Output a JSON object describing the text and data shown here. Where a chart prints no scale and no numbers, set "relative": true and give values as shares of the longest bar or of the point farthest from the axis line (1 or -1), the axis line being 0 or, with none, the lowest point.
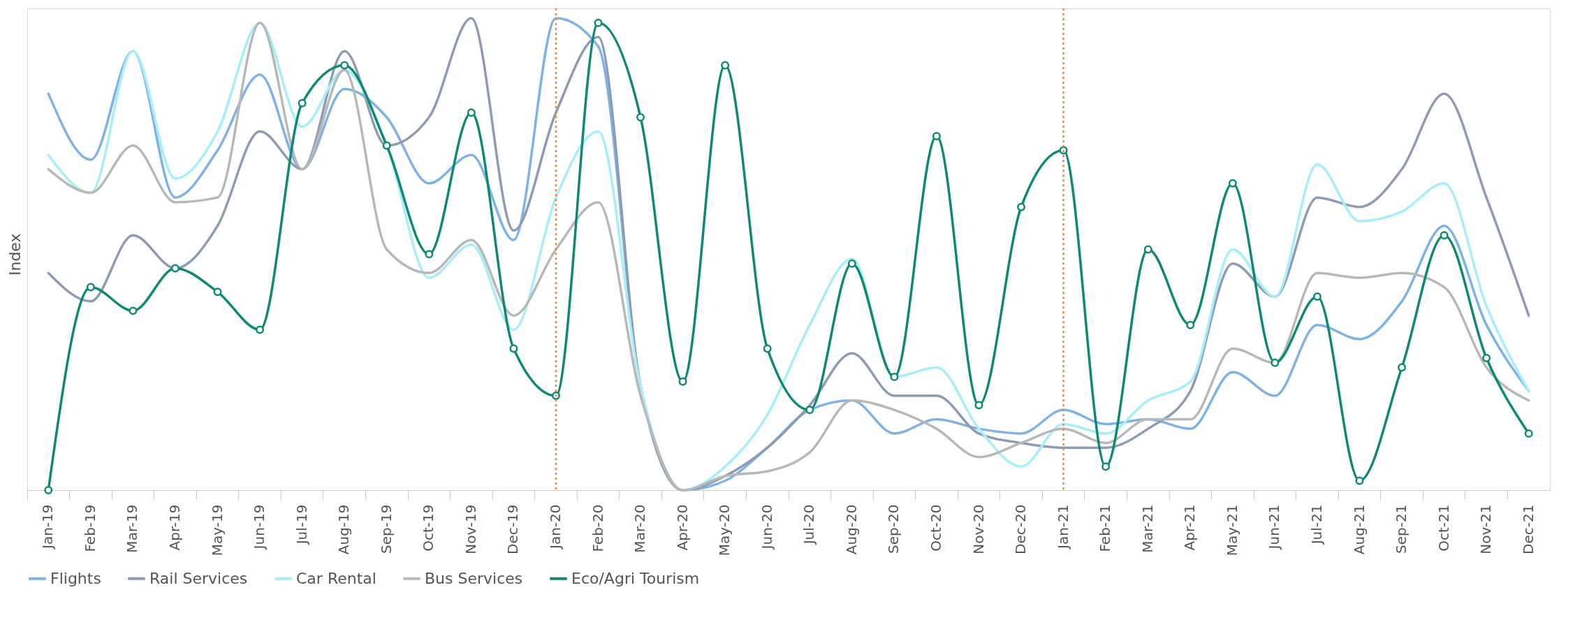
{
  "chart_data": {
    "type": "line",
    "relative": true,
    "ylabel": "Index",
    "legend": "bottom",
    "grid": false,
    "categories": [
      "Jan-19",
      "Feb-19",
      "Mar-19",
      "Apr-19",
      "May-19",
      "Jun-19",
      "Jul-19",
      "Aug-19",
      "Sep-19",
      "Oct-19",
      "Nov-19",
      "Dec-19",
      "Jan-20",
      "Feb-20",
      "Mar-20",
      "Apr-20",
      "May-20",
      "Jun-20",
      "Jul-20",
      "Aug-20",
      "Sep-20",
      "Oct-20",
      "Nov-20",
      "Dec-20",
      "Jan-21",
      "Feb-21",
      "Mar-21",
      "Apr-21",
      "May-21",
      "Jun-21",
      "Jul-21",
      "Aug-21",
      "Sep-21",
      "Oct-21",
      "Nov-21",
      "Dec-21"
    ],
    "series": [
      {
        "name": "Flights",
        "color": "#7db3e8",
        "marker": "none",
        "values": [
          0.84,
          0.7,
          0.93,
          0.62,
          0.72,
          0.88,
          0.68,
          0.85,
          0.79,
          0.65,
          0.71,
          0.53,
          1.0,
          0.94,
          0.22,
          0,
          0.02,
          0.09,
          0.17,
          0.19,
          0.12,
          0.15,
          0.13,
          0.12,
          0.17,
          0.14,
          0.15,
          0.13,
          0.25,
          0.2,
          0.35,
          0.32,
          0.4,
          0.56,
          0.35,
          0.21
        ]
      },
      {
        "name": "Rail Services",
        "color": "#8e9bb5",
        "marker": "none",
        "values": [
          0.46,
          0.4,
          0.54,
          0.47,
          0.56,
          0.76,
          0.68,
          0.93,
          0.73,
          0.79,
          1.0,
          0.55,
          0.8,
          0.96,
          0.22,
          0,
          0.03,
          0.09,
          0.18,
          0.29,
          0.2,
          0.2,
          0.12,
          0.1,
          0.09,
          0.09,
          0.13,
          0.21,
          0.48,
          0.41,
          0.62,
          0.6,
          0.68,
          0.84,
          0.62,
          0.37
        ]
      },
      {
        "name": "Car Rental",
        "color": "#a5eefa",
        "marker": "none",
        "values": [
          0.71,
          0.63,
          0.93,
          0.66,
          0.76,
          0.99,
          0.77,
          0.89,
          0.73,
          0.45,
          0.52,
          0.34,
          0.62,
          0.76,
          0.22,
          0,
          0.05,
          0.16,
          0.35,
          0.49,
          0.24,
          0.26,
          0.13,
          0.05,
          0.14,
          0.12,
          0.19,
          0.23,
          0.51,
          0.41,
          0.69,
          0.57,
          0.59,
          0.65,
          0.39,
          0.21
        ]
      },
      {
        "name": "Bus Services",
        "color": "#b8b8b8",
        "marker": "none",
        "values": [
          0.68,
          0.63,
          0.73,
          0.61,
          0.62,
          0.99,
          0.68,
          0.89,
          0.51,
          0.46,
          0.53,
          0.37,
          0.51,
          0.61,
          0.2,
          0,
          0.03,
          0.04,
          0.08,
          0.19,
          0.17,
          0.13,
          0.07,
          0.1,
          0.13,
          0.1,
          0.15,
          0.15,
          0.3,
          0.27,
          0.46,
          0.45,
          0.46,
          0.43,
          0.26,
          0.19
        ]
      },
      {
        "name": "Eco/Agri Tourism",
        "color": "#0e8a73",
        "marker": "circle",
        "values": [
          0,
          0.43,
          0.38,
          0.47,
          0.42,
          0.34,
          0.82,
          0.9,
          0.73,
          0.5,
          0.8,
          0.3,
          0.2,
          0.99,
          0.79,
          0.23,
          0.9,
          0.3,
          0.17,
          0.48,
          0.24,
          0.75,
          0.18,
          0.6,
          0.72,
          0.05,
          0.51,
          0.35,
          0.65,
          0.27,
          0.41,
          0.02,
          0.26,
          0.54,
          0.28,
          0.12
        ]
      }
    ],
    "ref_lines": [
      {
        "axis": "x",
        "value": "Jan-20",
        "color": "#f08a30",
        "line_style": "dotted"
      },
      {
        "axis": "x",
        "value": "Jan-21",
        "color": "#f08a30",
        "line_style": "dotted"
      }
    ]
  }
}
